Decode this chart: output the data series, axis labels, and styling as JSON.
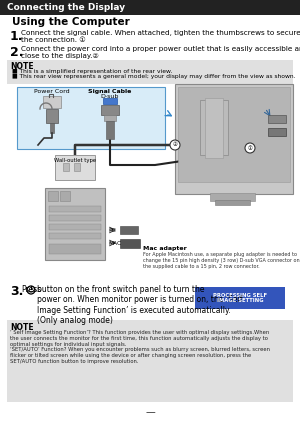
{
  "header_text": "Connecting the Display",
  "header_bg": "#222222",
  "header_fg": "#ffffff",
  "section_title": "Using the Computer",
  "step1_text": "Connect the signal cable. When attached, tighten the thumbscrews to secure\nthe connection. ①",
  "step2_text": "Connect the power cord into a proper power outlet that is easily accessible and\nclose to the display.②",
  "note_bg": "#e0e0e0",
  "note_bullet1": "This is a simplified representation of the rear view.",
  "note_bullet2": "This rear view represents a general model; your display may differ from the view as shown.",
  "inset_bg": "#d8ecf8",
  "inset_border": "#5599cc",
  "power_cord_label": "Power Cord",
  "signal_cable_label": "Signal Cable\nD-sub",
  "wall_outlet_label": "Wall-outlet type",
  "mac_adapter_label": "Mac adapter",
  "mac_text": "For Apple Macintosh use, a separate plug adapter is needed to\nchange the 15 pin high density (3 row) D-sub VGA connector on\nthe supplied cable to a 15 pin, 2 row connector.",
  "pc_label": "PC",
  "mac_label": "MAC",
  "step3_text": "button on the front switch panel to turn the\npower on. When monitor power is turned on, the ‘Self\nImage Setting Function’ is executed automatically.\n(Only analog mode)",
  "step3_btn_bg": "#3355bb",
  "step3_btn_text": "PROCESSING SELF\nIMAGE SETTING",
  "bottom_note_text": "‘ Self Image Setting Function’? This function provides the user with optimal display settings.When\nthe user connects the monitor for the first time, this function automatically adjusts the display to\noptimal settings for individual input signals.\n‘SET/AUTO’ Function? When you encounter problems such as blurry screen, blurred letters, screen\nflicker or tilted screen while using the device or after changing screen resolution, press the\nSET/AUTO function button to improve resolution.",
  "bottom_note_bg": "#e0e0e0",
  "bg_color": "#ffffff",
  "page_num_char": "—"
}
